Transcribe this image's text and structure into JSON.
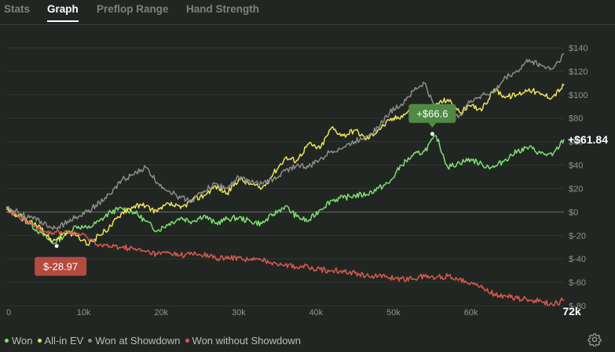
{
  "tabs": [
    {
      "label": "Stats",
      "active": false
    },
    {
      "label": "Graph",
      "active": true
    },
    {
      "label": "Preflop Range",
      "active": false
    },
    {
      "label": "Hand Strength",
      "active": false
    }
  ],
  "settings_icon": "gear-icon",
  "chart_data": {
    "type": "line",
    "title": "",
    "xlabel": "",
    "ylabel": "",
    "xlim": [
      0,
      72000
    ],
    "ylim": [
      -80,
      150
    ],
    "x_ticks": [
      "0",
      "10k",
      "20k",
      "30k",
      "40k",
      "50k",
      "60k",
      "72k"
    ],
    "x_tick_values": [
      0,
      10000,
      20000,
      30000,
      40000,
      50000,
      60000,
      72000
    ],
    "y_ticks": [
      "$140",
      "$120",
      "$100",
      "$80",
      "$60",
      "$40",
      "$20",
      "$0",
      "$-20",
      "$-40",
      "$-60",
      "$-80"
    ],
    "y_tick_values": [
      140,
      120,
      100,
      80,
      60,
      40,
      20,
      0,
      -20,
      -40,
      -60,
      -80
    ],
    "grid": true,
    "legend_position": "bottom-left",
    "series": [
      {
        "name": "Won",
        "color": "#7ee06f",
        "x": [
          0,
          1500,
          3000,
          4500,
          6000,
          7500,
          9000,
          10500,
          12000,
          13500,
          15000,
          16500,
          18000,
          19500,
          21000,
          22500,
          24000,
          25500,
          27000,
          28500,
          30000,
          31500,
          33000,
          34500,
          36000,
          37500,
          39000,
          40500,
          42000,
          43500,
          45000,
          46500,
          48000,
          49500,
          51000,
          52500,
          54000,
          55500,
          57000,
          58500,
          60000,
          61500,
          63000,
          64500,
          66000,
          67500,
          69000,
          70500,
          72000
        ],
        "y": [
          2,
          -3,
          -10,
          -18,
          -27,
          -20,
          -12,
          -14,
          -8,
          0,
          3,
          0,
          -8,
          -16,
          -10,
          -5,
          -8,
          -3,
          -10,
          -6,
          -5,
          -8,
          -10,
          -2,
          5,
          -4,
          -8,
          2,
          10,
          12,
          14,
          15,
          20,
          25,
          40,
          48,
          52,
          65,
          38,
          42,
          45,
          40,
          38,
          45,
          52,
          55,
          50,
          48,
          62
        ]
      },
      {
        "name": "All-in EV",
        "color": "#f0e35b",
        "x": [
          0,
          1500,
          3000,
          4500,
          6000,
          7500,
          9000,
          10500,
          12000,
          13500,
          15000,
          16500,
          18000,
          19500,
          21000,
          22500,
          24000,
          25500,
          27000,
          28500,
          30000,
          31500,
          33000,
          34500,
          36000,
          37500,
          39000,
          40500,
          42000,
          43500,
          45000,
          46500,
          48000,
          49500,
          51000,
          52500,
          54000,
          55500,
          57000,
          58500,
          60000,
          61500,
          63000,
          64500,
          66000,
          67500,
          69000,
          70500,
          72000
        ],
        "y": [
          4,
          -3,
          -8,
          -15,
          -25,
          -18,
          -20,
          -28,
          -20,
          -12,
          0,
          5,
          5,
          0,
          7,
          3,
          10,
          14,
          22,
          16,
          28,
          24,
          20,
          33,
          46,
          44,
          58,
          54,
          72,
          65,
          70,
          62,
          70,
          78,
          82,
          88,
          85,
          92,
          96,
          85,
          90,
          88,
          105,
          98,
          100,
          105,
          100,
          98,
          108
        ]
      },
      {
        "name": "Won at Showdown",
        "color": "#8a8d8a",
        "x": [
          0,
          1500,
          3000,
          4500,
          6000,
          7500,
          9000,
          10500,
          12000,
          13500,
          15000,
          16500,
          18000,
          19500,
          21000,
          22500,
          24000,
          25500,
          27000,
          28500,
          30000,
          31500,
          33000,
          34500,
          36000,
          37500,
          39000,
          40500,
          42000,
          43500,
          45000,
          46500,
          48000,
          49500,
          51000,
          52500,
          54000,
          55500,
          57000,
          58500,
          60000,
          61500,
          63000,
          64500,
          66000,
          67500,
          69000,
          70500,
          72000
        ],
        "y": [
          3,
          0,
          -5,
          -8,
          -15,
          -10,
          -4,
          0,
          8,
          15,
          28,
          32,
          38,
          25,
          18,
          12,
          10,
          18,
          24,
          20,
          30,
          25,
          24,
          28,
          35,
          40,
          38,
          45,
          52,
          55,
          60,
          65,
          72,
          85,
          92,
          103,
          110,
          85,
          90,
          82,
          95,
          100,
          102,
          115,
          120,
          130,
          125,
          122,
          135
        ]
      },
      {
        "name": "Won without Showdown",
        "color": "#d95a4f",
        "x": [
          0,
          1500,
          3000,
          4500,
          6000,
          7500,
          9000,
          10500,
          12000,
          13500,
          15000,
          16500,
          18000,
          19500,
          21000,
          22500,
          24000,
          25500,
          27000,
          28500,
          30000,
          31500,
          33000,
          34500,
          36000,
          37500,
          39000,
          40500,
          42000,
          43500,
          45000,
          46500,
          48000,
          49500,
          51000,
          52500,
          54000,
          55500,
          57000,
          58500,
          60000,
          61500,
          63000,
          64500,
          66000,
          67500,
          69000,
          70500,
          72000
        ],
        "y": [
          0,
          -4,
          -10,
          -15,
          -18,
          -17,
          -18,
          -22,
          -28,
          -30,
          -30,
          -32,
          -34,
          -36,
          -35,
          -37,
          -36,
          -37,
          -39,
          -40,
          -39,
          -41,
          -41,
          -43,
          -45,
          -47,
          -47,
          -49,
          -50,
          -50,
          -52,
          -54,
          -55,
          -56,
          -57,
          -57,
          -55,
          -56,
          -55,
          -57,
          -60,
          -65,
          -70,
          -72,
          -74,
          -75,
          -76,
          -79,
          -75
        ]
      }
    ],
    "annotations": [
      {
        "text": "$-28.97",
        "series": "Won",
        "x": 6500,
        "y": -29,
        "color": "#b54a40"
      },
      {
        "text": "+$66.6",
        "series": "Won",
        "x": 55000,
        "y": 66.6,
        "color": "#4f8a44"
      },
      {
        "text": "+$61.84",
        "series": "Won",
        "x": 72000,
        "y": 61.84,
        "color": "#ffffff"
      }
    ]
  }
}
